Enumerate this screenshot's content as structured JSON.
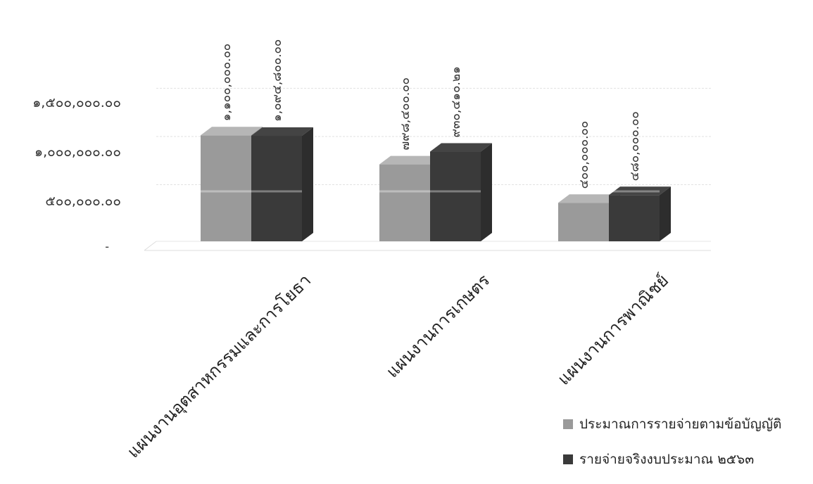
{
  "chart_data": {
    "type": "bar",
    "title": "",
    "xlabel": "",
    "ylabel": "",
    "ylim": [
      0,
      1800000
    ],
    "y_tick_values": [
      0,
      500000,
      1000000,
      1500000
    ],
    "y_tick_labels": [
      "-",
      "๕๐๐,๐๐๐.๐๐",
      "๑,๐๐๐,๐๐๐.๐๐",
      "๑,๕๐๐,๐๐๐.๐๐"
    ],
    "categories": [
      "แผนงานอุตสาหกรรมและการโยธา",
      "แผนงานการเกษตร",
      "แผนงานการพาณิชย์"
    ],
    "series": [
      {
        "name": "ประมาณการรายจ่ายตามข้อบัญญัติ",
        "color": "#9a9a9a",
        "values": [
          1100000,
          798400,
          400000
        ],
        "labels": [
          "๑,๑๐๐,๐๐๐.๐๐",
          "๗๙๘,๔๐๐.๐๐",
          "๔๐๐,๐๐๐.๐๐"
        ]
      },
      {
        "name": "รายจ่ายจริงงบประมาณ ๒๕๖๓",
        "color": "#3a3a3a",
        "values": [
          1094800,
          930410.21,
          480000
        ],
        "labels": [
          "๑,๐๙๔,๘๐๐.๐๐",
          "๙๓๐,๔๑๐.๒๑",
          "๔๘๐,๐๐๐.๐๐"
        ]
      }
    ],
    "grid": true,
    "legend_position": "bottom-right",
    "bar_style": "3d"
  }
}
